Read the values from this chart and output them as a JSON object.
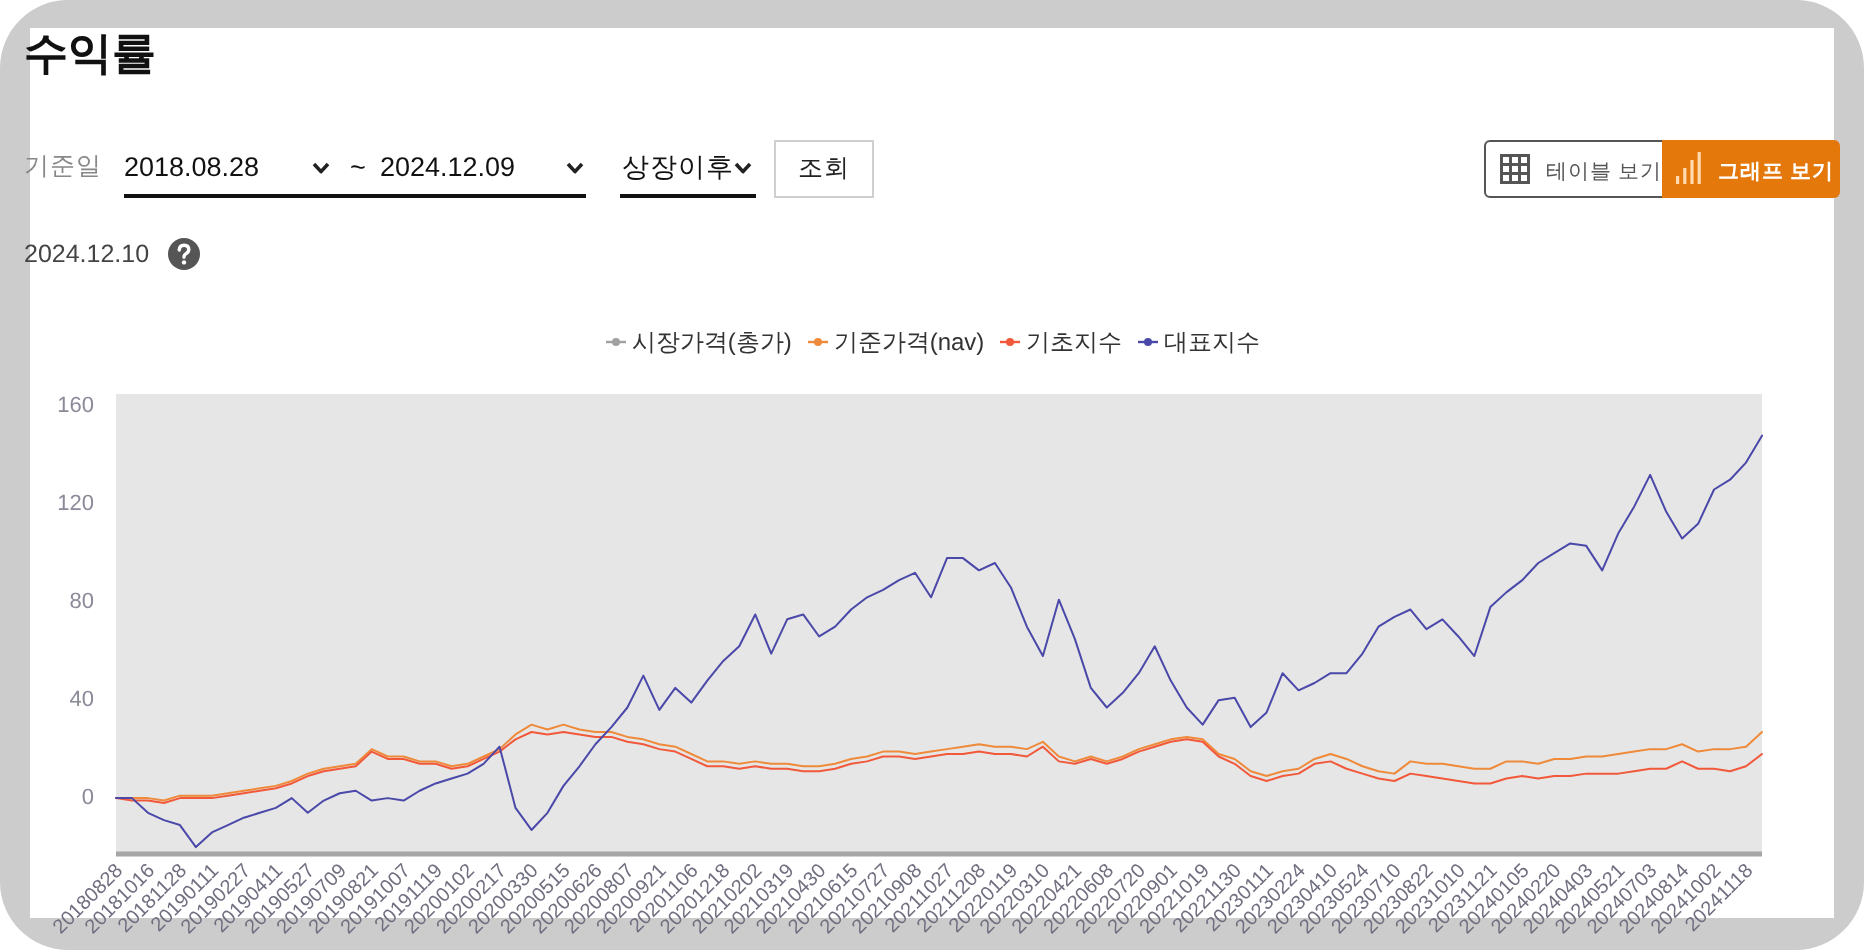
{
  "chart_data": {
    "type": "line",
    "title": "수익률",
    "annotations": [
      "기준일",
      "2018.08.28",
      "~",
      "2024.12.09",
      "상장이후",
      "조회",
      "테이블 보기",
      "그래프 보기",
      "2024.12.10"
    ],
    "categories": [
      "20180828",
      null,
      "20181016",
      null,
      "20181128",
      null,
      "20190111",
      null,
      "20190227",
      null,
      "20190411",
      null,
      "20190527",
      null,
      "20190709",
      null,
      "20190821",
      null,
      "20191007",
      null,
      "20191119",
      null,
      "20200102",
      null,
      "20200217",
      null,
      "20200330",
      null,
      "20200515",
      null,
      "20200626",
      null,
      "20200807",
      null,
      "20200921",
      null,
      "20201106",
      null,
      "20201218",
      null,
      "20210202",
      null,
      "20210319",
      null,
      "20210430",
      null,
      "20210615",
      null,
      "20210727",
      null,
      "20210908",
      null,
      "20211027",
      null,
      "20211208",
      null,
      "20220119",
      null,
      "20220310",
      null,
      "20220421",
      null,
      "20220608",
      null,
      "20220720",
      null,
      "20220901",
      null,
      "20221019",
      null,
      "20221130",
      null,
      "20230111",
      null,
      "20230224",
      null,
      "20230410",
      null,
      "20230524",
      null,
      "20230710",
      null,
      "20230822",
      null,
      "20231010",
      null,
      "20231121",
      null,
      "20240105",
      null,
      "20240220",
      null,
      "20240403",
      null,
      "20240521",
      null,
      "20240703",
      null,
      "20240814",
      null,
      "20241002",
      null,
      "20241118",
      null
    ],
    "series": [
      {
        "name": "시장가격(총가)",
        "color": "#a0a0a0",
        "values": [
          null,
          null,
          null,
          null,
          null,
          null,
          null,
          null,
          null,
          null,
          null,
          null,
          null,
          null,
          null,
          null,
          null,
          null,
          null,
          null,
          null,
          null,
          null,
          null,
          null,
          null,
          null,
          null,
          null,
          null,
          null,
          null,
          null,
          null,
          null,
          null,
          null,
          null,
          null,
          null,
          null,
          null,
          null,
          null,
          null,
          null,
          null,
          null,
          null,
          null,
          null,
          null,
          null,
          null,
          null,
          null,
          null,
          null,
          null,
          null,
          null,
          null,
          null,
          null,
          null,
          null,
          null,
          null,
          null,
          null,
          null,
          null,
          null,
          null,
          null,
          null,
          null,
          null,
          null,
          null,
          null,
          null,
          null,
          null,
          null,
          null,
          null,
          null,
          null,
          null,
          null,
          null,
          null,
          null,
          null,
          null,
          null,
          null,
          null,
          null,
          null,
          null,
          null,
          null
        ]
      },
      {
        "name": "기준가격(nav)",
        "color": "#ee8a3a",
        "values": [
          0,
          0,
          0,
          -1,
          1,
          1,
          1,
          2,
          3,
          4,
          5,
          7,
          10,
          12,
          13,
          14,
          20,
          17,
          17,
          15,
          15,
          13,
          14,
          17,
          20,
          26,
          30,
          28,
          30,
          28,
          27,
          27,
          25,
          24,
          22,
          21,
          18,
          15,
          15,
          14,
          15,
          14,
          14,
          13,
          13,
          14,
          16,
          17,
          19,
          19,
          18,
          19,
          20,
          21,
          22,
          21,
          21,
          20,
          23,
          17,
          15,
          17,
          15,
          17,
          20,
          22,
          24,
          25,
          24,
          18,
          16,
          11,
          9,
          11,
          12,
          16,
          18,
          16,
          13,
          11,
          10,
          15,
          14,
          14,
          13,
          12,
          12,
          15,
          15,
          14,
          16,
          16,
          17,
          17,
          18,
          19,
          20,
          20,
          22,
          19,
          20,
          20,
          21,
          27
        ]
      },
      {
        "name": "기초지수",
        "color": "#f2583a",
        "values": [
          0,
          -1,
          -1,
          -2,
          0,
          0,
          0,
          1,
          2,
          3,
          4,
          6,
          9,
          11,
          12,
          13,
          19,
          16,
          16,
          14,
          14,
          12,
          13,
          16,
          19,
          24,
          27,
          26,
          27,
          26,
          25,
          25,
          23,
          22,
          20,
          19,
          16,
          13,
          13,
          12,
          13,
          12,
          12,
          11,
          11,
          12,
          14,
          15,
          17,
          17,
          16,
          17,
          18,
          18,
          19,
          18,
          18,
          17,
          21,
          15,
          14,
          16,
          14,
          16,
          19,
          21,
          23,
          24,
          23,
          17,
          14,
          9,
          7,
          9,
          10,
          14,
          15,
          12,
          10,
          8,
          7,
          10,
          9,
          8,
          7,
          6,
          6,
          8,
          9,
          8,
          9,
          9,
          10,
          10,
          10,
          11,
          12,
          12,
          15,
          12,
          12,
          11,
          13,
          18
        ]
      },
      {
        "name": "대표지수",
        "color": "#4a48a8",
        "values": [
          0,
          0,
          -6,
          -9,
          -11,
          -20,
          -14,
          -11,
          -8,
          -6,
          -4,
          0,
          -6,
          -1,
          2,
          3,
          -1,
          0,
          -1,
          3,
          6,
          8,
          10,
          14,
          21,
          -4,
          -13,
          -6,
          5,
          13,
          22,
          29,
          37,
          50,
          36,
          45,
          39,
          48,
          56,
          62,
          75,
          59,
          73,
          75,
          66,
          70,
          77,
          82,
          85,
          89,
          92,
          82,
          98,
          98,
          93,
          96,
          86,
          70,
          58,
          81,
          65,
          45,
          37,
          43,
          51,
          62,
          48,
          37,
          30,
          40,
          41,
          29,
          35,
          51,
          44,
          47,
          51,
          51,
          59,
          70,
          74,
          77,
          69,
          73,
          66,
          58,
          78,
          84,
          89,
          96,
          100,
          104,
          103,
          93,
          108,
          119,
          132,
          117,
          106,
          112,
          126,
          130,
          137,
          148
        ]
      }
    ],
    "ylim": [
      -22,
      165
    ],
    "yticks": [
      0,
      40,
      80,
      120,
      160
    ],
    "legend": "top"
  }
}
